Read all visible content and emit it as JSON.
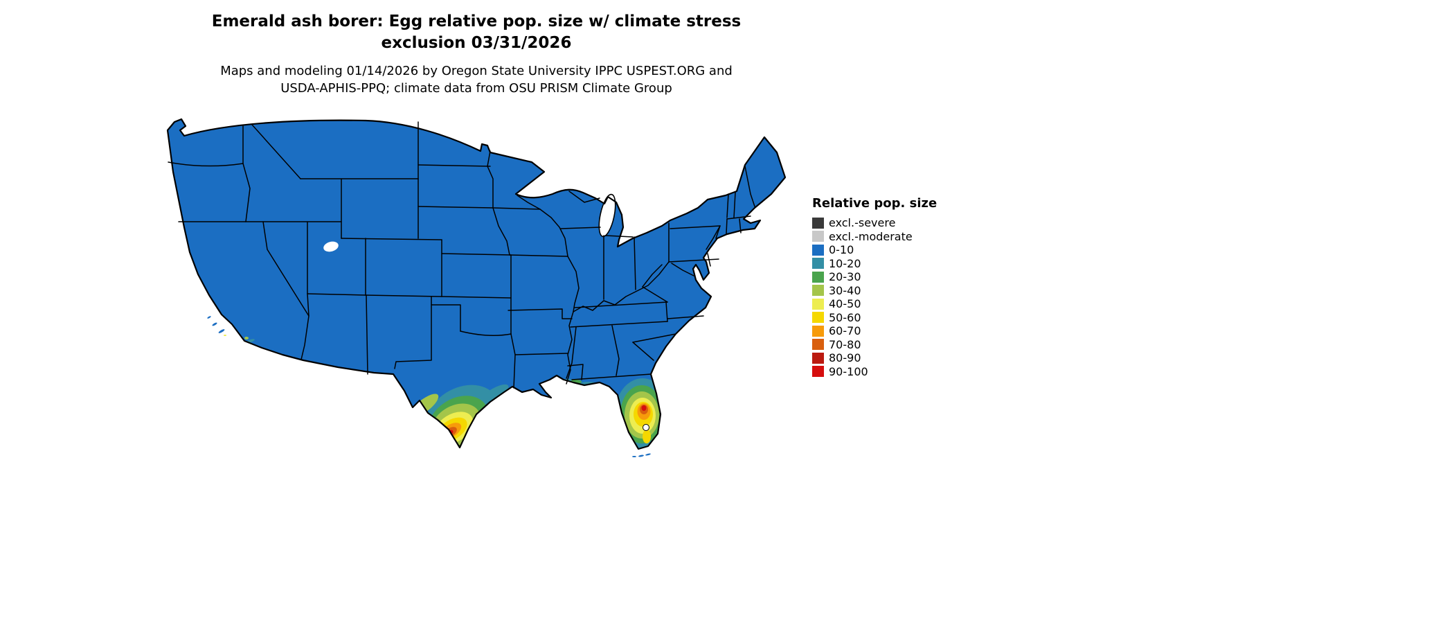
{
  "title": {
    "line1": "Emerald ash borer: Egg relative pop. size w/ climate stress",
    "line2": "exclusion 03/31/2026"
  },
  "subtitle": {
    "line1": "Maps and modeling 01/14/2026 by Oregon State University IPPC USPEST.ORG and",
    "line2": "USDA-APHIS-PPQ; climate data from OSU PRISM Climate Group"
  },
  "legend": {
    "title": "Relative pop. size",
    "items": [
      {
        "label": "excl.-severe",
        "color": "#3a3a3a"
      },
      {
        "label": "excl.-moderate",
        "color": "#c8c8c8"
      },
      {
        "label": "0-10",
        "color": "#1b6ec2"
      },
      {
        "label": "10-20",
        "color": "#338fa5"
      },
      {
        "label": "20-30",
        "color": "#4aa44d"
      },
      {
        "label": "30-40",
        "color": "#a4c54a"
      },
      {
        "label": "40-50",
        "color": "#eded51"
      },
      {
        "label": "50-60",
        "color": "#f5d800"
      },
      {
        "label": "60-70",
        "color": "#f79b0b"
      },
      {
        "label": "70-80",
        "color": "#d95f0e"
      },
      {
        "label": "80-90",
        "color": "#bb1a10"
      },
      {
        "label": "90-100",
        "color": "#d60e0e"
      }
    ]
  },
  "colors": {
    "background": "#ffffff",
    "map_border": "#000000",
    "water": "#ffffff"
  }
}
